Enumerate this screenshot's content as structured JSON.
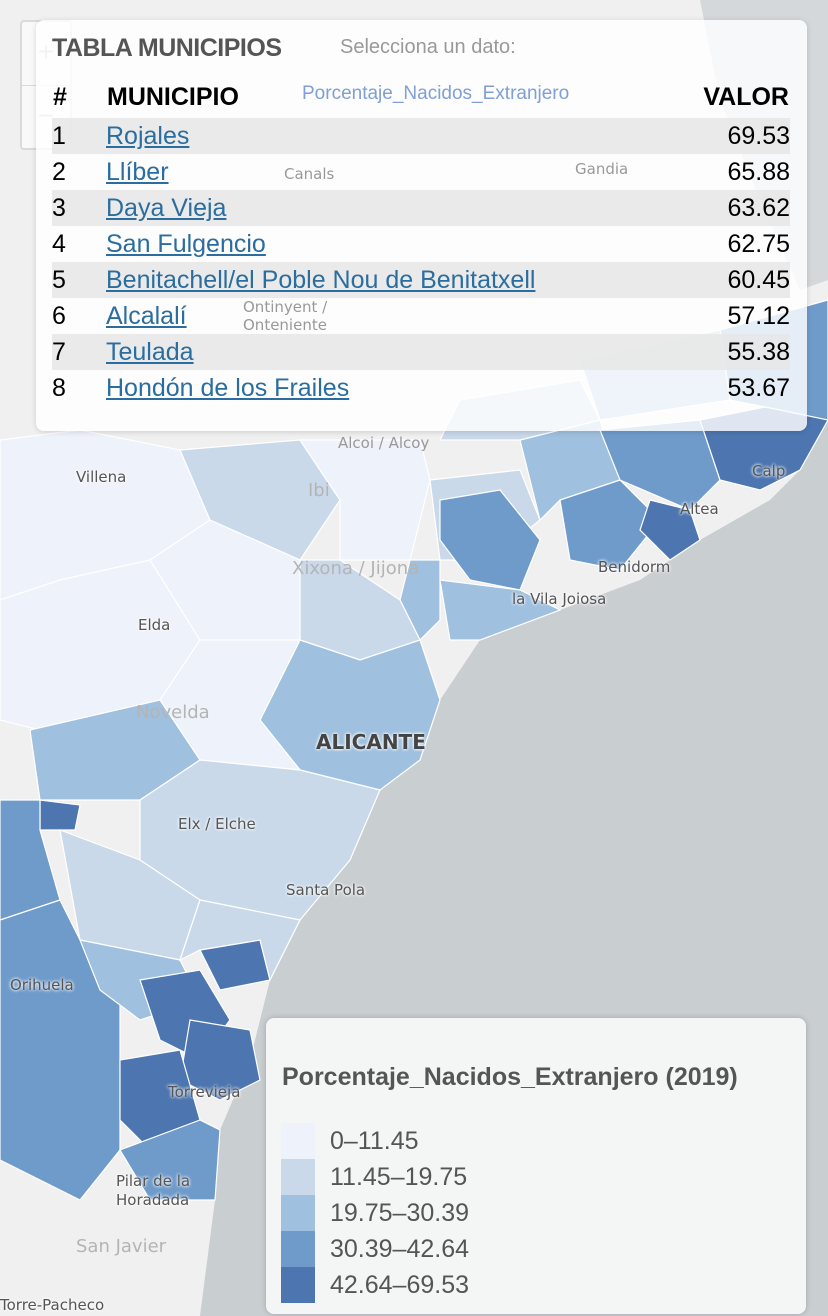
{
  "selector": {
    "label": "Selecciona un dato:",
    "value": "Porcentaje_Nacidos_Extranjero"
  },
  "zoom": {
    "in": "+",
    "out": "−"
  },
  "table": {
    "title": "TABLA MUNICIPIOS",
    "headers": {
      "rank": "#",
      "municipio": "MUNICIPIO",
      "valor": "VALOR"
    },
    "rows": [
      {
        "rank": "1",
        "municipio": "Rojales",
        "valor": "69.53"
      },
      {
        "rank": "2",
        "municipio": "Llíber",
        "valor": "65.88"
      },
      {
        "rank": "3",
        "municipio": "Daya Vieja",
        "valor": "63.62"
      },
      {
        "rank": "4",
        "municipio": "San Fulgencio",
        "valor": "62.75"
      },
      {
        "rank": "5",
        "municipio": "Benitachell/el Poble Nou de Benitatxell",
        "valor": "60.45"
      },
      {
        "rank": "6",
        "municipio": "Alcalalí",
        "valor": "57.12"
      },
      {
        "rank": "7",
        "municipio": "Teulada",
        "valor": "55.38"
      },
      {
        "rank": "8",
        "municipio": "Hondón de los Frailes",
        "valor": "53.67"
      }
    ]
  },
  "legend": {
    "title": "Porcentaje_Nacidos_Extranjero (2019)",
    "classes": [
      {
        "label": "0–11.45",
        "color": "#eef2fa"
      },
      {
        "label": "11.45–19.75",
        "color": "#c9d9ea"
      },
      {
        "label": "19.75–30.39",
        "color": "#9fc0de"
      },
      {
        "label": "30.39–42.64",
        "color": "#6f9bcb"
      },
      {
        "label": "42.64–69.53",
        "color": "#4d76b0"
      }
    ]
  },
  "map_labels": {
    "villena": "Villena",
    "ibi": "Ibi",
    "xixona": "Xixona / Jijona",
    "elda": "Elda",
    "novelda": "Novelda",
    "alicante": "ALICANTE",
    "elche": "Elx / Elche",
    "santa_pola": "Santa Pola",
    "orihuela": "Orihuela",
    "torrevieja": "Torrevieja",
    "pilar": "Pilar de la",
    "horadada": "Horadada",
    "san_javier": "San Javier",
    "torre_pacheco": "Torre-Pacheco",
    "benidorm": "Benidorm",
    "vila_joiosa": "la Vila Joiosa",
    "altea": "Altea",
    "calp": "Calp",
    "alcoi": "Alcoi / Alcoy",
    "ontinyent": "Ontinyent /",
    "onteniente": "Onteniente",
    "canals": "Canals",
    "gandia": "Gandia"
  },
  "colors": {
    "sea": "#c9ced1",
    "land": "#f0f0f0",
    "link": "#2a6d9e"
  }
}
